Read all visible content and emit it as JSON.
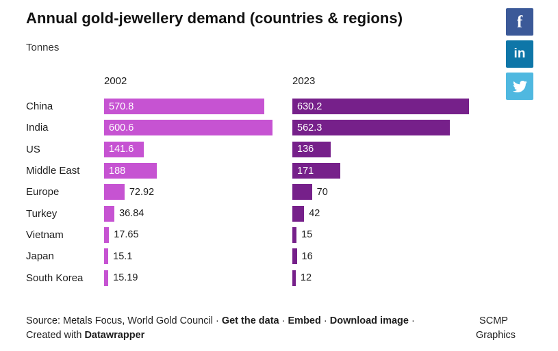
{
  "header": {
    "title": "Annual gold-jewellery demand (countries & regions)",
    "subtitle": "Tonnes"
  },
  "social": [
    {
      "name": "facebook",
      "glyph": "f",
      "color": "#3b5998"
    },
    {
      "name": "linkedin",
      "glyph": "in",
      "color": "#0e76a8"
    },
    {
      "name": "twitter",
      "glyph": "",
      "color": "#4fb8e0"
    }
  ],
  "chart_data": {
    "type": "bar",
    "orientation": "horizontal",
    "unit": "Tonnes",
    "column_headers": [
      "2002",
      "2023"
    ],
    "categories": [
      "China",
      "India",
      "US",
      "Middle East",
      "Europe",
      "Turkey",
      "Vietnam",
      "Japan",
      "South Korea"
    ],
    "series": [
      {
        "name": "2002",
        "color": "#c653d2",
        "values": [
          570.8,
          600.6,
          141.6,
          188,
          72.92,
          36.84,
          17.65,
          15.1,
          15.19
        ],
        "labels": [
          "570.8",
          "600.6",
          "141.6",
          "188",
          "72.92",
          "36.84",
          "17.65",
          "15.1",
          "15.19"
        ]
      },
      {
        "name": "2023",
        "color": "#76208a",
        "values": [
          630.2,
          562.3,
          136,
          171,
          70,
          42,
          15,
          16,
          12
        ],
        "labels": [
          "630.2",
          "562.3",
          "136",
          "171",
          "70",
          "42",
          "15",
          "16",
          "12"
        ]
      }
    ],
    "xmax": 650,
    "value_label_inside_threshold": 100,
    "grid": false,
    "legend_position": "column-headers"
  },
  "footer": {
    "parts": [
      {
        "text": "Source: Metals Focus, World Gold Council",
        "link": false,
        "name": "source-text"
      },
      {
        "text": " · ",
        "link": false,
        "name": "separator"
      },
      {
        "text": "Get the data",
        "link": true,
        "name": "get-the-data-link"
      },
      {
        "text": " · ",
        "link": false,
        "name": "separator"
      },
      {
        "text": "Embed",
        "link": true,
        "name": "embed-link"
      },
      {
        "text": " · ",
        "link": false,
        "name": "separator"
      },
      {
        "text": "Download image",
        "link": true,
        "name": "download-image-link"
      },
      {
        "text": " · ",
        "link": false,
        "name": "separator"
      },
      {
        "text": "Created with ",
        "link": false,
        "name": "created-with-text"
      },
      {
        "text": "Datawrapper",
        "link": true,
        "name": "datawrapper-link"
      }
    ],
    "credit": [
      "SCMP",
      "Graphics"
    ]
  }
}
